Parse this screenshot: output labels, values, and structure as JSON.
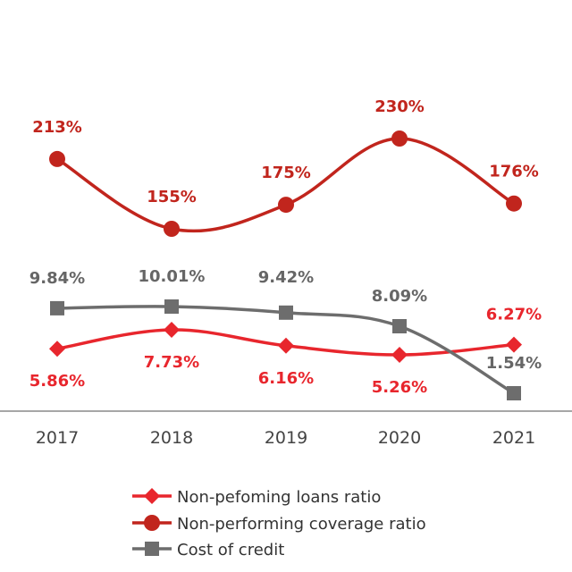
{
  "chart_data": {
    "type": "line",
    "categories": [
      "2017",
      "2018",
      "2019",
      "2020",
      "2021"
    ],
    "series": [
      {
        "name": "Non-pefoming loans ratio",
        "values": [
          5.86,
          7.73,
          6.16,
          5.26,
          6.27
        ],
        "labels": [
          "5.86%",
          "7.73%",
          "6.16%",
          "5.26%",
          "6.27%"
        ],
        "color": "#e8262d",
        "marker": "diamond"
      },
      {
        "name": "Non-performing coverage ratio",
        "values": [
          213,
          155,
          175,
          230,
          176
        ],
        "labels": [
          "213%",
          "155%",
          "175%",
          "230%",
          "176%"
        ],
        "color": "#c1251d",
        "marker": "circle"
      },
      {
        "name": "Cost of credit",
        "values": [
          9.84,
          10.01,
          9.42,
          8.09,
          1.54
        ],
        "labels": [
          "9.84%",
          "10.01%",
          "9.42%",
          "8.09%",
          "1.54%"
        ],
        "color": "#6d6d6d",
        "marker": "square"
      }
    ],
    "legend_position": "bottom",
    "grid": false
  }
}
